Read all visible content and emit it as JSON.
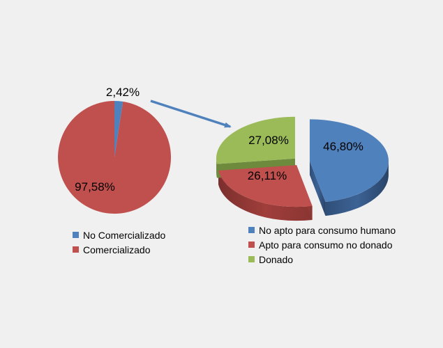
{
  "chart_data": [
    {
      "type": "pie",
      "title": "",
      "categories": [
        "No Comercializado",
        "Comercializado"
      ],
      "values": [
        2.42,
        97.58
      ],
      "labels": [
        "2,42%",
        "97,58%"
      ],
      "colors": [
        "#4f81bd",
        "#c0504d"
      ],
      "legend_position": "bottom-left"
    },
    {
      "type": "pie",
      "style": "3d-exploded",
      "title": "",
      "categories": [
        "No apto para consumo humano",
        "Apto para consumo no donado",
        "Donado"
      ],
      "values": [
        46.8,
        26.11,
        27.08
      ],
      "labels": [
        "46,80%",
        "26,11%",
        "27,08%"
      ],
      "colors": [
        "#4f81bd",
        "#c0504d",
        "#9bbb59"
      ],
      "legend_position": "bottom-right"
    }
  ]
}
